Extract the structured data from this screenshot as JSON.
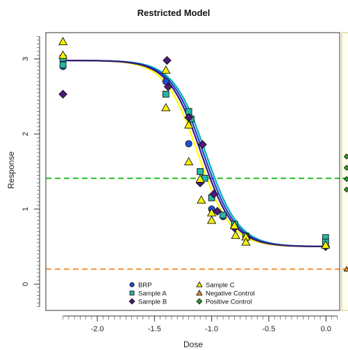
{
  "chart_data": {
    "type": "scatter",
    "title": "Restricted Model",
    "xlabel": "Dose",
    "ylabel": "Response",
    "xlim": [
      -2.45,
      0.12
    ],
    "ylim": [
      -0.35,
      3.35
    ],
    "xticks": [
      -2.0,
      -1.5,
      -1.0,
      -0.5,
      0.0
    ],
    "xtick_labels": [
      "-2.0",
      "-1.5",
      "-1.0",
      "-0.5",
      "0.0"
    ],
    "yticks": [
      0,
      1,
      2,
      3
    ],
    "ytick_labels": [
      "0",
      "1",
      "2",
      "3"
    ],
    "grid": false,
    "legend_position": "bottom-center",
    "series": [
      {
        "name": "BRP",
        "marker": "circle",
        "color": "#1f4fd6",
        "x": [
          -2.3,
          -1.4,
          -1.2,
          -1.1,
          -1.0,
          -0.9,
          -0.8,
          -0.7,
          -0.003
        ],
        "y": [
          2.9,
          2.7,
          1.87,
          1.37,
          1.0,
          0.9,
          0.76,
          0.63,
          0.55
        ]
      },
      {
        "name": "Sample A",
        "marker": "square",
        "color": "#26b6a6",
        "x": [
          -2.3,
          -2.3,
          -1.4,
          -1.2,
          -1.18,
          -1.1,
          -1.06,
          -1.0,
          -0.9,
          -0.8,
          -0.7,
          -0.003,
          -0.003
        ],
        "y": [
          3.01,
          2.92,
          2.53,
          2.3,
          2.2,
          1.5,
          1.41,
          1.15,
          0.92,
          0.8,
          0.64,
          0.62,
          0.56
        ]
      },
      {
        "name": "Sample B",
        "marker": "diamond",
        "color": "#4b1a7a",
        "x": [
          -2.3,
          -1.39,
          -1.38,
          -1.2,
          -1.08,
          -1.1,
          -0.98,
          -0.95,
          -0.8,
          -0.69,
          -0.003
        ],
        "y": [
          2.53,
          2.98,
          2.63,
          2.22,
          1.86,
          1.35,
          1.2,
          0.97,
          0.75,
          0.62,
          0.5
        ]
      },
      {
        "name": "Sample C",
        "marker": "triangle",
        "color": "#f5f000",
        "x": [
          -2.3,
          -2.3,
          -1.4,
          -1.4,
          -1.2,
          -1.2,
          -1.1,
          -1.09,
          -1.0,
          -1.0,
          -0.8,
          -0.79,
          -0.7,
          -0.7,
          -0.003
        ],
        "y": [
          3.23,
          3.05,
          2.85,
          2.35,
          2.12,
          1.63,
          1.4,
          1.12,
          0.95,
          0.85,
          0.78,
          0.65,
          0.63,
          0.56,
          0.52
        ]
      },
      {
        "name": "Negative Control",
        "marker": "triangle",
        "color": "#f08a24",
        "x": [],
        "y": []
      },
      {
        "name": "Positive Control",
        "marker": "diamond",
        "color": "#2aa02a",
        "x": [],
        "y": []
      }
    ],
    "curves": [
      {
        "color": "#ffff00",
        "upper": 2.98,
        "lower": 0.5,
        "ec50": -1.12,
        "slope": 7.0
      },
      {
        "color": "#00b2b2",
        "upper": 2.98,
        "lower": 0.5,
        "ec50": -1.05,
        "slope": 7.0
      },
      {
        "color": "#1f3fd6",
        "upper": 2.98,
        "lower": 0.5,
        "ec50": -1.07,
        "slope": 7.0
      },
      {
        "color": "#3a1a72",
        "upper": 2.98,
        "lower": 0.5,
        "ec50": -1.09,
        "slope": 7.0
      }
    ],
    "reference_lines": [
      {
        "y": 1.41,
        "color": "#22bb22",
        "style": "dashed"
      },
      {
        "y": 0.2,
        "color": "#f39232",
        "style": "dashed"
      }
    ]
  }
}
